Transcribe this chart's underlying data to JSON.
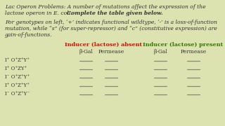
{
  "bg_color": "#dde3b0",
  "title_line1": "Lac Operon Problems: A number of mutations affect the expression of the",
  "title_line2": "lactose operon in E. coli. Complete the table given below.",
  "title_line2_bold": "Complete the table given below.",
  "desc_line1": "For genotypes on left, ‘+’ indicates functional wildtype, ‘-’ is a loss-of-function",
  "desc_line2": "mutation, while “s” (for super-repressor) and “c” (constitutive expression) are",
  "desc_line3": "gain-of-functions.",
  "col_header_absent": "Inducer (lactose) absent",
  "col_header_present": "Inducer (lactose) present",
  "col_absent_color": "#cc1100",
  "col_present_color": "#337700",
  "sub_headers": [
    "β-Gal",
    "Permease",
    "β-Gal",
    "Permease"
  ],
  "genotypes": [
    "I⁺ O⁺Z⁺Y⁺",
    "I⁺ O⁺ZY⁺",
    "I⁻ O⁺Z⁺Y⁺",
    "I⁺ O⁺Z⁺Y⁺",
    "I⁻ O⁺Z⁺Y⁻"
  ],
  "text_color": "#333333",
  "line_color": "#888877",
  "fs_tiny": 5.0,
  "fs_body": 5.5,
  "fs_header": 5.8
}
